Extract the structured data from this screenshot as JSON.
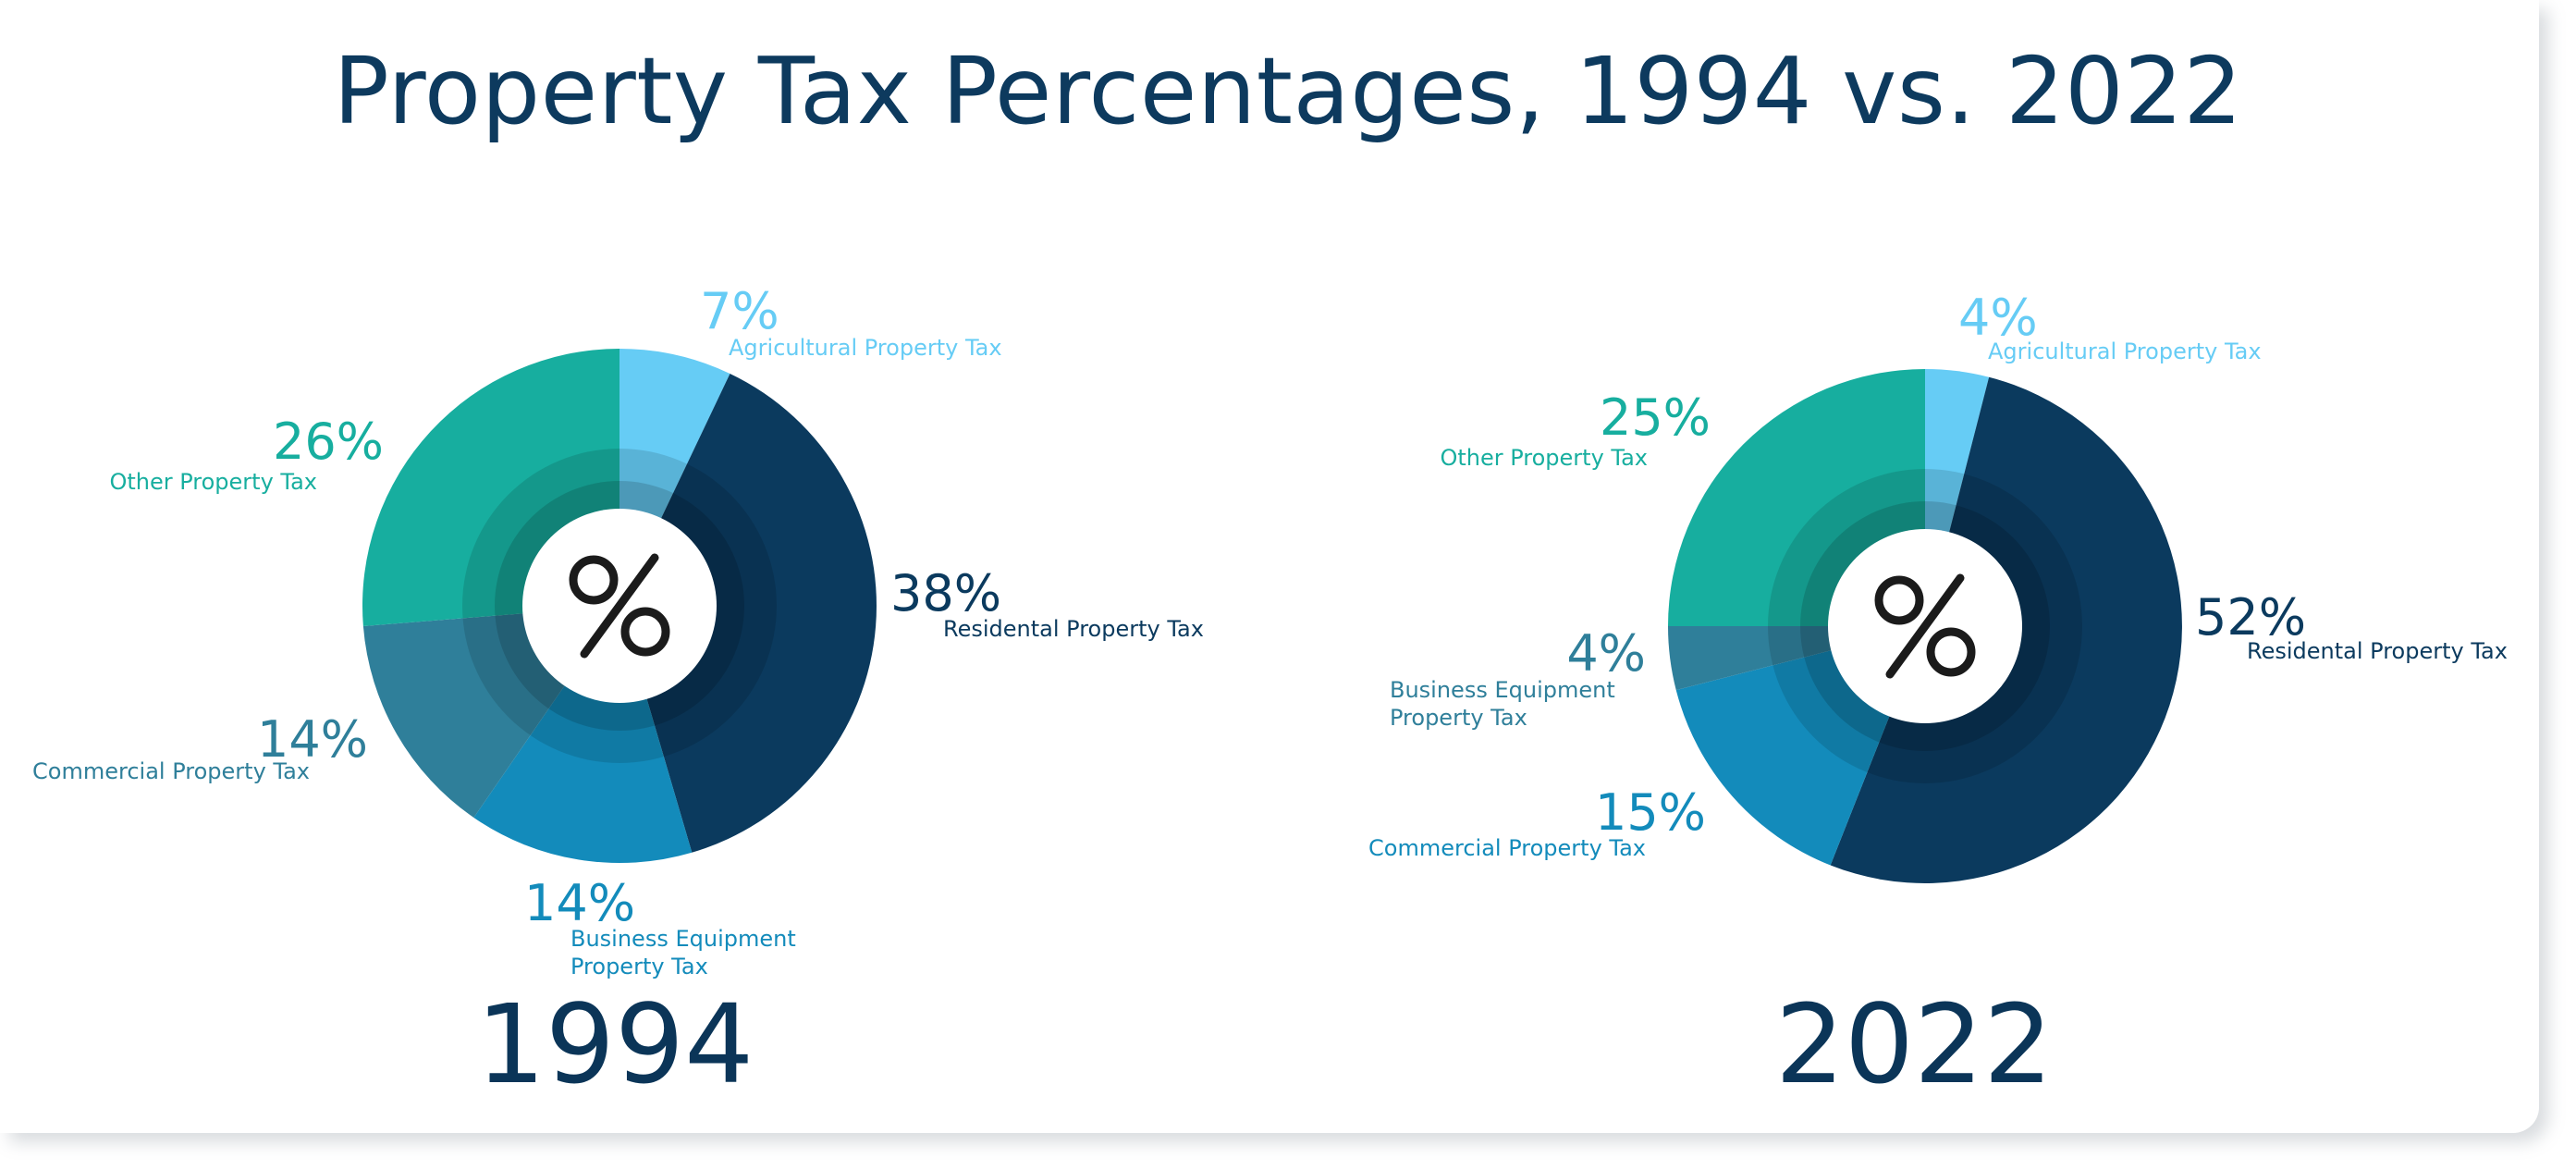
{
  "page": {
    "title": "Property Tax Percentages, 1994 vs. 2022"
  },
  "colors": {
    "agricultural": "#66ccf5",
    "residential": "#0b3a5e",
    "business_equipment": "#138bbb",
    "commercial": "#2f7f9a",
    "other": "#17ae9f",
    "title_text": "#0d3a5e"
  },
  "chart_data": [
    {
      "type": "pie",
      "year_label": "1994",
      "center_icon": "percent-icon",
      "slices": [
        {
          "label": "Agricultural  Property Tax",
          "value": 7,
          "value_label": "7%",
          "color": "#66ccf5"
        },
        {
          "label": "Residental Property Tax",
          "value": 38,
          "value_label": "38%",
          "color": "#0b3a5e"
        },
        {
          "label": "Business Equipment Property Tax",
          "value": 14,
          "value_label": "14%",
          "color": "#138bbb"
        },
        {
          "label": "Commercial Property Tax",
          "value": 14,
          "value_label": "14%",
          "color": "#2f7f9a"
        },
        {
          "label": "Other Property Tax",
          "value": 26,
          "value_label": "26%",
          "color": "#17ae9f"
        }
      ]
    },
    {
      "type": "pie",
      "year_label": "2022",
      "center_icon": "percent-icon",
      "slices": [
        {
          "label": "Agricultural  Property Tax",
          "value": 4,
          "value_label": "4%",
          "color": "#66ccf5"
        },
        {
          "label": "Residental Property Tax",
          "value": 52,
          "value_label": "52%",
          "color": "#0b3a5e"
        },
        {
          "label": "Commercial Property Tax",
          "value": 15,
          "value_label": "15%",
          "color": "#138bbb"
        },
        {
          "label": "Business Equipment Property Tax",
          "value": 4,
          "value_label": "4%",
          "color": "#2f7f9a"
        },
        {
          "label": "Other Property Tax",
          "value": 25,
          "value_label": "25%",
          "color": "#17ae9f"
        }
      ]
    }
  ]
}
